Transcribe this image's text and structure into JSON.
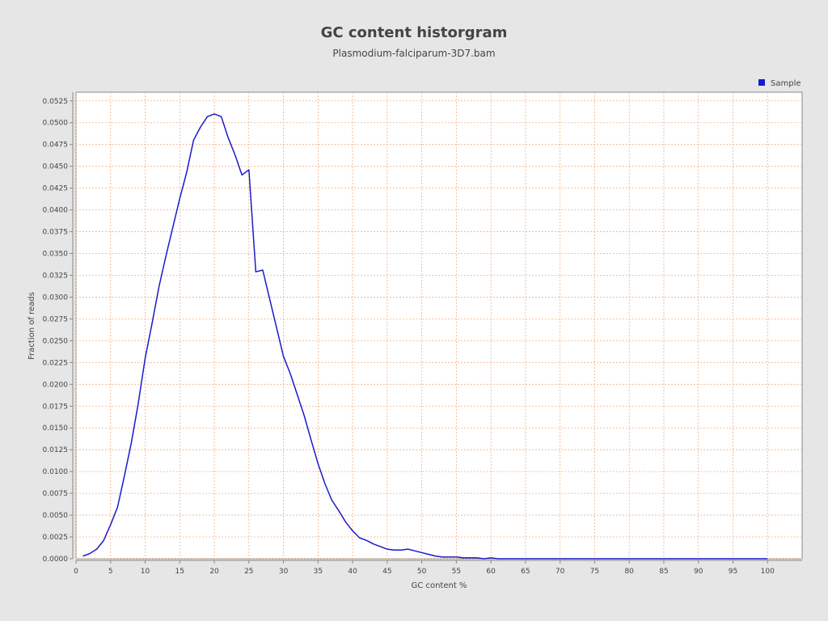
{
  "chart_data": {
    "type": "line",
    "title": "GC content historgram",
    "subtitle": "Plasmodium-falciparum-3D7.bam",
    "xlabel": "GC content %",
    "ylabel": "Fraction of reads",
    "xlim": [
      0,
      105
    ],
    "ylim": [
      0,
      0.0535
    ],
    "xticks": [
      0,
      5,
      10,
      15,
      20,
      25,
      30,
      35,
      40,
      45,
      50,
      55,
      60,
      65,
      70,
      75,
      80,
      85,
      90,
      95,
      100
    ],
    "yticks": [
      0.0,
      0.0025,
      0.005,
      0.0075,
      0.01,
      0.0125,
      0.015,
      0.0175,
      0.02,
      0.0225,
      0.025,
      0.0275,
      0.03,
      0.0325,
      0.035,
      0.0375,
      0.04,
      0.0425,
      0.045,
      0.0475,
      0.05,
      0.0525
    ],
    "ytick_decimals": 4,
    "grid": true,
    "legend_position": "top-right",
    "colors": {
      "series": "#1a1acc",
      "grid": "#f0b080",
      "plot_bg": "#ffffff",
      "page_bg": "#e6e6e6"
    },
    "series": [
      {
        "name": "Sample",
        "x": [
          1,
          2,
          3,
          4,
          5,
          6,
          7,
          8,
          9,
          10,
          11,
          12,
          13,
          14,
          15,
          16,
          17,
          18,
          19,
          20,
          21,
          22,
          23,
          24,
          25,
          26,
          27,
          28,
          29,
          30,
          31,
          32,
          33,
          34,
          35,
          36,
          37,
          38,
          39,
          40,
          41,
          42,
          43,
          44,
          45,
          46,
          47,
          48,
          49,
          50,
          51,
          52,
          53,
          54,
          55,
          56,
          57,
          58,
          59,
          60,
          61,
          62,
          63,
          64,
          65,
          66,
          67,
          68,
          69,
          70,
          71,
          72,
          73,
          74,
          75,
          76,
          77,
          78,
          79,
          80,
          81,
          82,
          83,
          84,
          85,
          86,
          87,
          88,
          89,
          90,
          91,
          92,
          93,
          94,
          95,
          96,
          97,
          98,
          99,
          100
        ],
        "y": [
          0.0003,
          0.0006,
          0.0011,
          0.0021,
          0.0039,
          0.0059,
          0.0095,
          0.0133,
          0.0178,
          0.023,
          0.027,
          0.0312,
          0.0347,
          0.038,
          0.0413,
          0.0443,
          0.048,
          0.0495,
          0.0507,
          0.051,
          0.0507,
          0.0483,
          0.0463,
          0.044,
          0.0446,
          0.0329,
          0.0331,
          0.0298,
          0.0265,
          0.0232,
          0.0212,
          0.0188,
          0.0164,
          0.0136,
          0.0109,
          0.0086,
          0.0067,
          0.0055,
          0.0042,
          0.0032,
          0.0024,
          0.0021,
          0.0017,
          0.0014,
          0.0011,
          0.001,
          0.001,
          0.0011,
          0.0009,
          0.0007,
          0.0005,
          0.0003,
          0.0002,
          0.0002,
          0.0002,
          0.0001,
          0.0001,
          0.0001,
          0.0,
          0.0001,
          0.0,
          0.0,
          0.0,
          0.0,
          0.0,
          0.0,
          0.0,
          0.0,
          0.0,
          0.0,
          0.0,
          0.0,
          0.0,
          0.0,
          0.0,
          0.0,
          0.0,
          0.0,
          0.0,
          0.0,
          0.0,
          0.0,
          0.0,
          0.0,
          0.0,
          0.0,
          0.0,
          0.0,
          0.0,
          0.0,
          0.0,
          0.0,
          0.0,
          0.0,
          0.0,
          0.0,
          0.0,
          0.0,
          0.0,
          0.0
        ]
      }
    ]
  }
}
